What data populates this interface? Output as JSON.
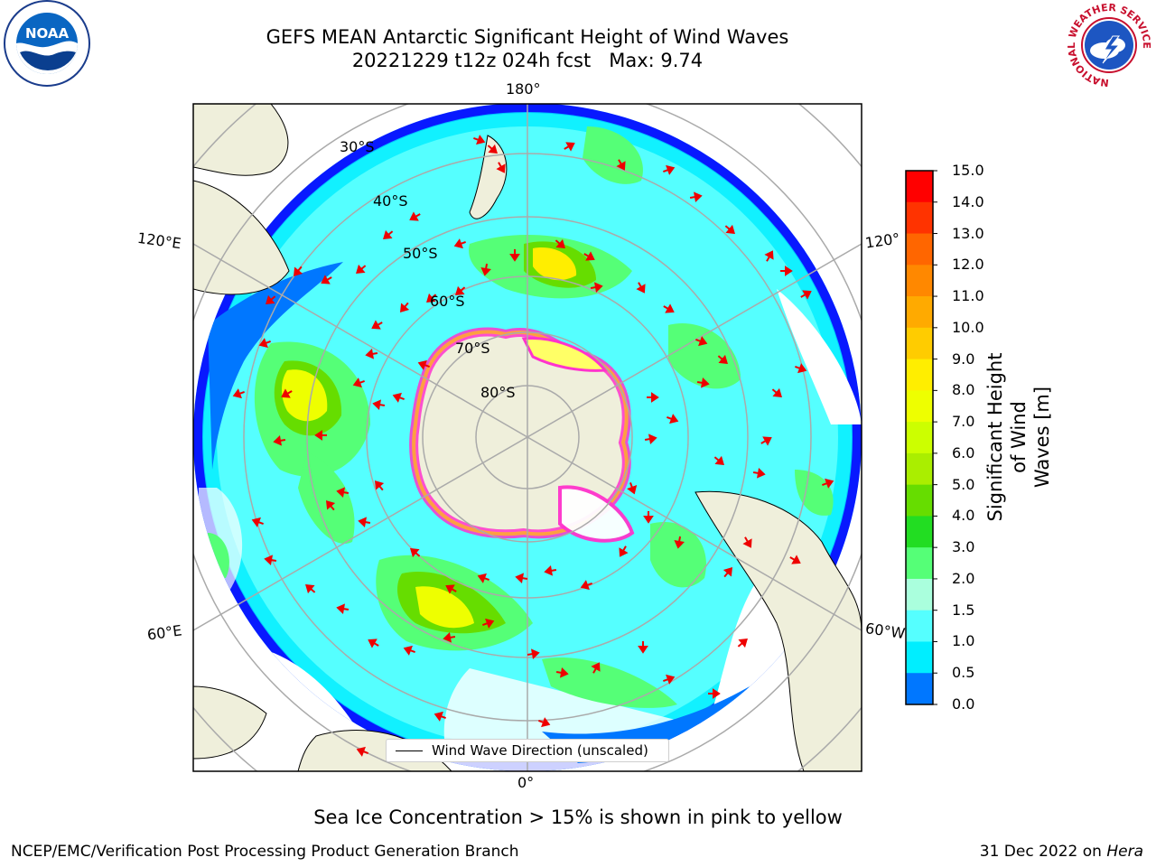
{
  "title": {
    "line1": "GEFS MEAN Antarctic Significant Height of Wind Waves",
    "line2": "20221229 t12z 024h fcst   Max: 9.74"
  },
  "map": {
    "projection": "south-polar-stereographic",
    "longitude_labels": [
      "180°",
      "120°E",
      "120°",
      "60°E",
      "60°W",
      "0°"
    ],
    "latitude_labels": [
      "30°S",
      "40°S",
      "50°S",
      "60°S",
      "70°S",
      "80°S"
    ],
    "land_color": "#efefdb",
    "ocean_no_data_color": "#ffffff",
    "sea_ice_colors": [
      "#ff33cc",
      "#ffaa33",
      "#ffff66"
    ],
    "arrow_color": "#ff0000"
  },
  "legend": {
    "label": "Wind Wave Direction (unscaled)"
  },
  "colorbar": {
    "title_line1": "Significant Height of Wind",
    "title_line2": "Waves [m]",
    "ticks": [
      "15.0",
      "14.0",
      "13.0",
      "12.0",
      "11.0",
      "10.0",
      "9.0",
      "8.0",
      "7.0",
      "6.0",
      "5.0",
      "4.0",
      "3.0",
      "2.0",
      "1.5",
      "1.0",
      "0.5",
      "0.0"
    ],
    "colors": [
      "#ff0000",
      "#ff3300",
      "#ff6600",
      "#ff8800",
      "#ffaa00",
      "#ffcc00",
      "#ffee00",
      "#eeff00",
      "#ccff00",
      "#aaee00",
      "#66dd00",
      "#22dd22",
      "#55ff77",
      "#aaffdd",
      "#55ffff",
      "#00eeff",
      "#0077ff",
      "#0000ff"
    ]
  },
  "footer": {
    "note": "Sea Ice Concentration > 15% is shown in pink to yellow",
    "credit": "NCEP/EMC/Verification Post Processing Product Generation Branch",
    "date": "31 Dec 2022 on ",
    "host": "Hera"
  },
  "logos": {
    "noaa": "NOAA",
    "nws_ring": "NATIONAL WEATHER SERVICE"
  }
}
